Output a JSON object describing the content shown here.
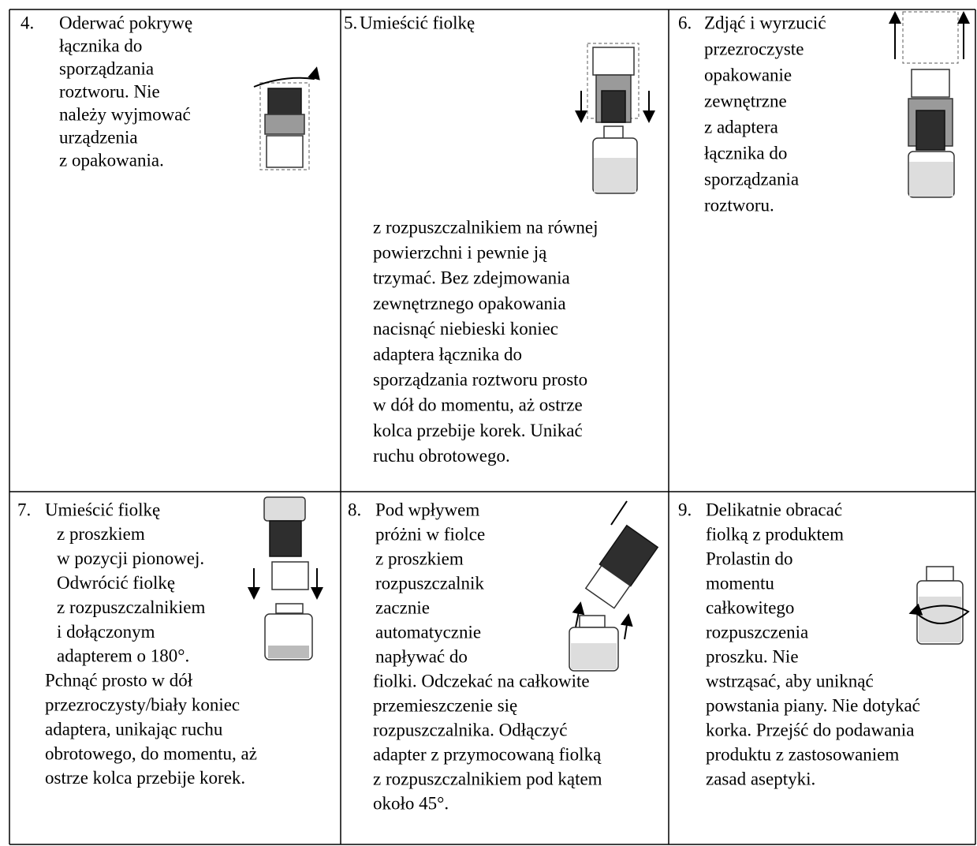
{
  "table": {
    "cells": [
      {
        "number": "4.",
        "lines": [
          "Oderwać pokrywę",
          "łącznika do",
          "sporządzania",
          "roztworu. Nie",
          "należy wyjmować",
          "urządzenia",
          "z opakowania."
        ]
      },
      {
        "number": "5.",
        "lines": [
          "Umieścić fiolkę",
          "z rozpuszczalnikiem na równej",
          "powierzchni i pewnie ją",
          "trzymać. Bez zdejmowania",
          "zewnętrznego opakowania",
          "nacisnąć niebieski koniec",
          "adaptera łącznika do",
          "sporządzania roztworu prosto",
          "w dół do momentu, aż ostrze",
          "kolca przebije korek. Unikać",
          "ruchu obrotowego."
        ]
      },
      {
        "number": "6.",
        "lines": [
          "Zdjąć i wyrzucić",
          "przezroczyste",
          "opakowanie",
          "zewnętrzne",
          "z adaptera",
          "łącznika do",
          "sporządzania",
          "roztworu."
        ]
      },
      {
        "number": "7.",
        "lines": [
          "Umieścić fiolkę",
          "z proszkiem",
          "w pozycji pionowej.",
          "Odwrócić fiolkę",
          "z rozpuszczalnikiem",
          "i dołączonym",
          "adapterem o 180°.",
          "Pchnąć prosto w dół",
          "przezroczysty/biały koniec",
          "adaptera, unikając ruchu",
          "obrotowego, do momentu, aż",
          "ostrze kolca przebije korek."
        ]
      },
      {
        "number": "8.",
        "lines": [
          "Pod wpływem",
          "próżni w fiolce",
          "z proszkiem",
          "rozpuszczalnik",
          "zacznie",
          "automatycznie",
          "napływać do",
          "fiolki. Odczekać na całkowite",
          "przemieszczenie się",
          "rozpuszczalnika. Odłączyć",
          "adapter z przymocowaną fiolką",
          "z rozpuszczalnikiem pod kątem",
          "około 45°."
        ]
      },
      {
        "number": "9.",
        "lines": [
          "Delikatnie obracać",
          "fiolką z produktem",
          "Prolastin do",
          "momentu",
          "całkowitego",
          "rozpuszczenia",
          "proszku. Nie",
          "wstrząsać, aby uniknąć",
          "powstania piany. Nie dotykać",
          "korka. Przejść do podawania",
          "produktu z zastosowaniem",
          "zasad aseptyki."
        ]
      }
    ]
  }
}
